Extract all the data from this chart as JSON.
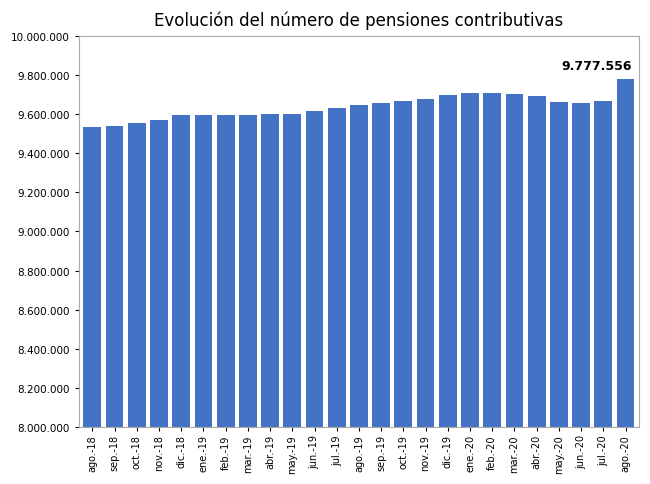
{
  "title": "Evolución del número de pensiones contributivas",
  "categories": [
    "ago.-18",
    "sep.-18",
    "oct.-18",
    "nov.-18",
    "dic.-18",
    "ene.-19",
    "feb.-19",
    "mar.-19",
    "abr.-19",
    "may.-19",
    "jun.-19",
    "jul.-19",
    "ago.-19",
    "sep.-19",
    "oct.-19",
    "nov.-19",
    "dic.-19",
    "ene.-20",
    "feb.-20",
    "mar.-20",
    "abr.-20",
    "may.-20",
    "jun.-20",
    "jul.-20",
    "ago.-20"
  ],
  "values": [
    9536000,
    9539000,
    9552000,
    9571000,
    9594000,
    9595000,
    9597000,
    9596000,
    9598000,
    9598000,
    9616000,
    9632000,
    9648000,
    9658000,
    9665000,
    9675000,
    9695000,
    9706000,
    9706000,
    9703000,
    9694000,
    9659000,
    9656000,
    9668000,
    9777556
  ],
  "annotation_value": "9.777.556",
  "bar_color": "#4472C4",
  "ylim_min": 8000000,
  "ylim_max": 10000000,
  "ytick_step": 200000,
  "background_color": "#ffffff",
  "title_fontsize": 12,
  "chart_border_color": "#aaaaaa"
}
